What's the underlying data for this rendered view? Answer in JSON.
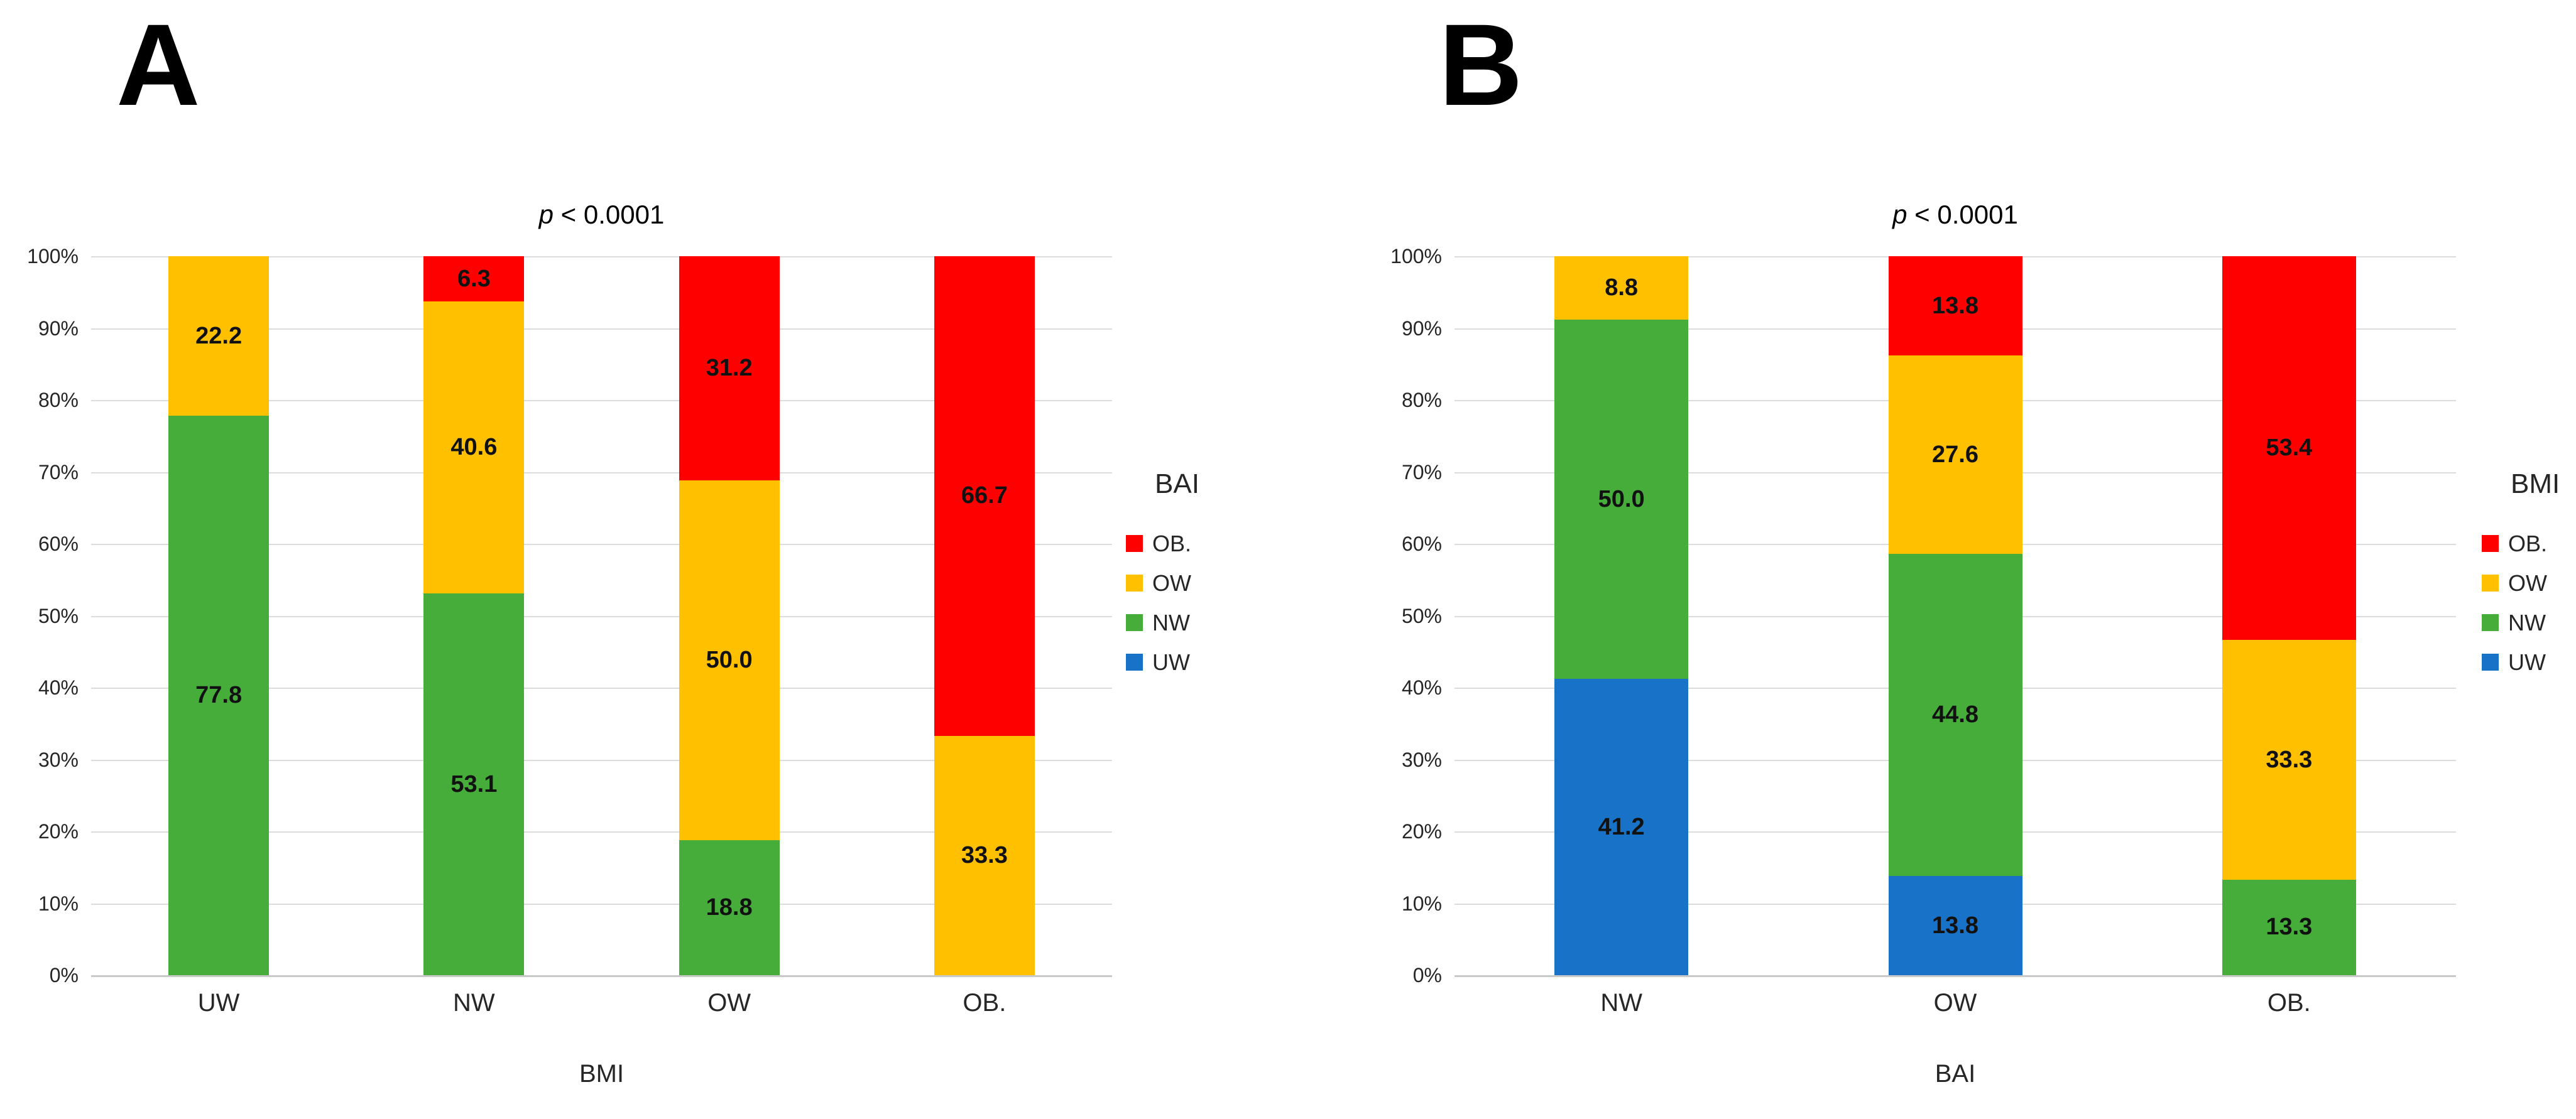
{
  "page": {
    "background": "#ffffff"
  },
  "colors": {
    "red": "#fe0000",
    "yellow": "#ffc000",
    "green": "#46ad3b",
    "blue": "#1772c8",
    "gridline": "#dcdcdc",
    "axis_line": "#c9c9c9"
  },
  "chart_data": [
    {
      "type": "bar",
      "stacked": true,
      "units": "percent",
      "corner_label": "A",
      "title": {
        "italic": "p",
        "rest": " < 0.0001"
      },
      "xlabel": "BMI",
      "legend_title": "BAI",
      "legend_position": "right",
      "grid": true,
      "ylim": [
        0,
        100
      ],
      "ylabel_ticks": [
        "0%",
        "10%",
        "20%",
        "30%",
        "40%",
        "50%",
        "60%",
        "70%",
        "80%",
        "90%",
        "100%"
      ],
      "categories": [
        "UW",
        "NW",
        "OW",
        "OB."
      ],
      "legend": [
        {
          "label": "OB.",
          "color_key": "red"
        },
        {
          "label": "OW",
          "color_key": "yellow"
        },
        {
          "label": "NW",
          "color_key": "green"
        },
        {
          "label": "UW",
          "color_key": "blue"
        }
      ],
      "bars": [
        {
          "category": "UW",
          "segments": [
            {
              "series": "NW",
              "color_key": "green",
              "value": 77.8,
              "label": "77.8"
            },
            {
              "series": "OW",
              "color_key": "yellow",
              "value": 22.2,
              "label": "22.2"
            }
          ]
        },
        {
          "category": "NW",
          "segments": [
            {
              "series": "NW",
              "color_key": "green",
              "value": 53.1,
              "label": "53.1"
            },
            {
              "series": "OW",
              "color_key": "yellow",
              "value": 40.6,
              "label": "40.6"
            },
            {
              "series": "OB.",
              "color_key": "red",
              "value": 6.3,
              "label": "6.3"
            }
          ]
        },
        {
          "category": "OW",
          "segments": [
            {
              "series": "NW",
              "color_key": "green",
              "value": 18.8,
              "label": "18.8"
            },
            {
              "series": "OW",
              "color_key": "yellow",
              "value": 50.0,
              "label": "50.0"
            },
            {
              "series": "OB.",
              "color_key": "red",
              "value": 31.2,
              "label": "31.2"
            }
          ]
        },
        {
          "category": "OB.",
          "segments": [
            {
              "series": "OW",
              "color_key": "yellow",
              "value": 33.3,
              "label": "33.3"
            },
            {
              "series": "OB.",
              "color_key": "red",
              "value": 66.7,
              "label": "66.7"
            }
          ]
        }
      ]
    },
    {
      "type": "bar",
      "stacked": true,
      "units": "percent",
      "corner_label": "B",
      "title": {
        "italic": "p",
        "rest": " < 0.0001"
      },
      "xlabel": "BAI",
      "legend_title": "BMI",
      "legend_position": "right",
      "grid": true,
      "ylim": [
        0,
        100
      ],
      "ylabel_ticks": [
        "0%",
        "10%",
        "20%",
        "30%",
        "40%",
        "50%",
        "60%",
        "70%",
        "80%",
        "90%",
        "100%"
      ],
      "categories": [
        "NW",
        "OW",
        "OB."
      ],
      "legend": [
        {
          "label": "OB.",
          "color_key": "red"
        },
        {
          "label": "OW",
          "color_key": "yellow"
        },
        {
          "label": "NW",
          "color_key": "green"
        },
        {
          "label": "UW",
          "color_key": "blue"
        }
      ],
      "bars": [
        {
          "category": "NW",
          "segments": [
            {
              "series": "UW",
              "color_key": "blue",
              "value": 41.2,
              "label": "41.2"
            },
            {
              "series": "NW",
              "color_key": "green",
              "value": 50.0,
              "label": "50.0"
            },
            {
              "series": "OW",
              "color_key": "yellow",
              "value": 8.8,
              "label": "8.8"
            }
          ]
        },
        {
          "category": "OW",
          "segments": [
            {
              "series": "UW",
              "color_key": "blue",
              "value": 13.8,
              "label": "13.8"
            },
            {
              "series": "NW",
              "color_key": "green",
              "value": 44.8,
              "label": "44.8"
            },
            {
              "series": "OW",
              "color_key": "yellow",
              "value": 27.6,
              "label": "27.6"
            },
            {
              "series": "OB.",
              "color_key": "red",
              "value": 13.8,
              "label": "13.8"
            }
          ]
        },
        {
          "category": "OB.",
          "segments": [
            {
              "series": "NW",
              "color_key": "green",
              "value": 13.3,
              "label": "13.3"
            },
            {
              "series": "OW",
              "color_key": "yellow",
              "value": 33.3,
              "label": "33.3"
            },
            {
              "series": "OB.",
              "color_key": "red",
              "value": 53.4,
              "label": "53.4"
            }
          ]
        }
      ]
    }
  ]
}
